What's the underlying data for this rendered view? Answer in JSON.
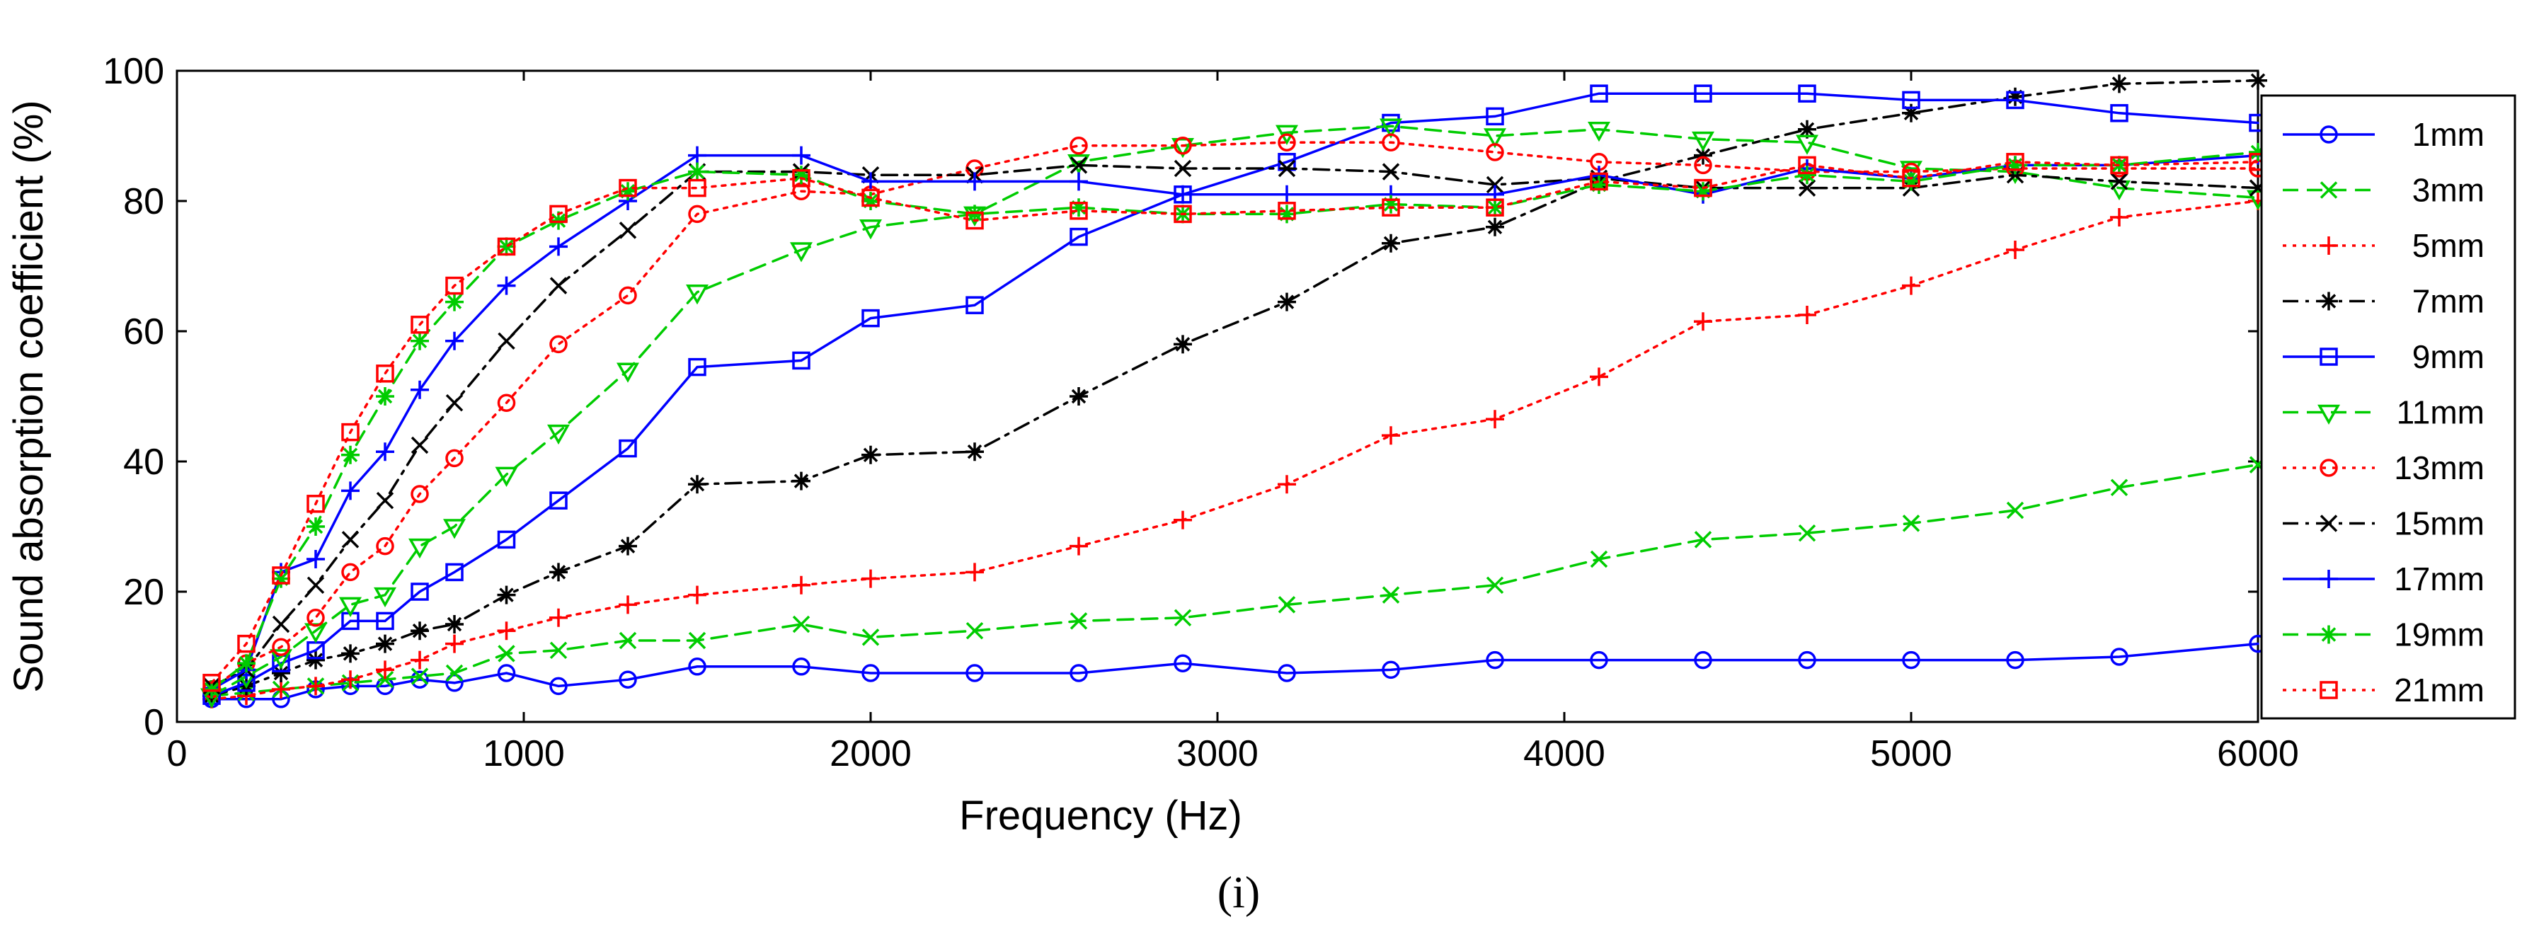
{
  "chart_data": {
    "type": "line",
    "title": "",
    "xlabel": "Frequency (Hz)",
    "ylabel": "Sound absorption coefficient (%)",
    "caption": "(i)",
    "xlim": [
      0,
      6000
    ],
    "ylim": [
      0,
      100
    ],
    "xticks": [
      0,
      1000,
      2000,
      3000,
      4000,
      5000,
      6000
    ],
    "yticks": [
      0,
      20,
      40,
      60,
      80,
      100
    ],
    "grid": false,
    "legend_position": "right",
    "x": [
      100,
      200,
      300,
      400,
      500,
      600,
      700,
      800,
      950,
      1100,
      1300,
      1500,
      1800,
      2000,
      2300,
      2600,
      2900,
      3200,
      3500,
      3800,
      4100,
      4400,
      4700,
      5000,
      5300,
      5600,
      6000
    ],
    "series": [
      {
        "name": "1mm",
        "color": "#0000ff",
        "dash": "solid",
        "marker": "circle",
        "values": [
          3.5,
          3.5,
          3.5,
          5,
          5.5,
          5.5,
          6.5,
          6,
          7.5,
          5.5,
          6.5,
          8.5,
          8.5,
          7.5,
          7.5,
          7.5,
          9,
          7.5,
          8,
          9.5,
          9.5,
          9.5,
          9.5,
          9.5,
          9.5,
          10,
          12
        ]
      },
      {
        "name": "3mm",
        "color": "#00cc00",
        "dash": "dashed",
        "marker": "x",
        "values": [
          4,
          4.5,
          5,
          5.5,
          6,
          6.5,
          7,
          7.5,
          10.5,
          11,
          12.5,
          12.5,
          15,
          13,
          14,
          15.5,
          16,
          18,
          19.5,
          21,
          25,
          28,
          29,
          30.5,
          32.5,
          36,
          39.5
        ]
      },
      {
        "name": "5mm",
        "color": "#ff0000",
        "dash": "dotted",
        "marker": "plus",
        "values": [
          3.5,
          4,
          5,
          5.5,
          6.5,
          8,
          9.5,
          12,
          14,
          16,
          18,
          19.5,
          21,
          22,
          23,
          27,
          31,
          36.5,
          44,
          46.5,
          53,
          61.5,
          62.5,
          67,
          72.5,
          77.5,
          80
        ]
      },
      {
        "name": "7mm",
        "color": "#000000",
        "dash": "dashdot",
        "marker": "star",
        "values": [
          4,
          5.5,
          7.5,
          9.5,
          10.5,
          12,
          14,
          15,
          19.5,
          23,
          27,
          36.5,
          37,
          41,
          41.5,
          50,
          58,
          64.5,
          73.5,
          76,
          83,
          87,
          91,
          93.5,
          96,
          98,
          98.5
        ]
      },
      {
        "name": "9mm",
        "color": "#0000ff",
        "dash": "solid",
        "marker": "square",
        "values": [
          4,
          6,
          9,
          11,
          15.5,
          15.5,
          20,
          23,
          28,
          34,
          42,
          54.5,
          55.5,
          62,
          64,
          74.5,
          81,
          86,
          92,
          93,
          96.5,
          96.5,
          96.5,
          95.5,
          95.5,
          93.5,
          92
        ]
      },
      {
        "name": "11mm",
        "color": "#00cc00",
        "dash": "dashed",
        "marker": "triangle-down",
        "values": [
          4,
          7,
          10,
          14,
          18,
          19.5,
          27,
          30,
          38,
          44.5,
          54,
          66,
          72.5,
          76,
          78,
          86,
          88.5,
          90.5,
          91.5,
          90,
          91,
          89.5,
          89,
          85,
          84.5,
          82,
          80.5
        ]
      },
      {
        "name": "13mm",
        "color": "#ff0000",
        "dash": "dotted",
        "marker": "circle",
        "values": [
          5,
          9,
          11.5,
          16,
          23,
          27,
          35,
          40.5,
          49,
          58,
          65.5,
          78,
          81.5,
          81,
          85,
          88.5,
          88.5,
          89,
          89,
          87.5,
          86,
          85.5,
          84.5,
          84.5,
          85,
          85,
          85
        ]
      },
      {
        "name": "15mm",
        "color": "#000000",
        "dash": "dashdot",
        "marker": "x",
        "values": [
          5.5,
          8,
          15,
          21,
          28,
          34,
          42.5,
          49,
          58.5,
          67,
          75.5,
          84.5,
          84.5,
          84,
          84,
          85.5,
          85,
          85,
          84.5,
          82.5,
          83.5,
          82,
          82,
          82,
          84,
          83,
          82
        ]
      },
      {
        "name": "17mm",
        "color": "#0000ff",
        "dash": "solid",
        "marker": "plus",
        "values": [
          5,
          8,
          23,
          25,
          35.5,
          41.5,
          51,
          58.5,
          67,
          73,
          80,
          87,
          87,
          83,
          83,
          83,
          81,
          81,
          81,
          81,
          84,
          81,
          85,
          83.5,
          85.5,
          85.5,
          87
        ]
      },
      {
        "name": "19mm",
        "color": "#00cc00",
        "dash": "dashed",
        "marker": "star",
        "values": [
          5,
          9,
          22,
          30,
          41,
          50,
          58.5,
          64.5,
          73,
          77,
          81.5,
          84.5,
          84,
          80,
          78,
          79,
          78,
          78,
          79.5,
          79,
          82.5,
          81.5,
          84,
          83,
          85.5,
          85.5,
          87.5
        ]
      },
      {
        "name": "21mm",
        "color": "#ff0000",
        "dash": "dotted",
        "marker": "square",
        "values": [
          6,
          12,
          22.5,
          33.5,
          44.5,
          53.5,
          61,
          67,
          73,
          78,
          82,
          82,
          83.5,
          80.5,
          77,
          78.5,
          78,
          78.5,
          79,
          79,
          83,
          82,
          85.5,
          83.5,
          86,
          85.5,
          86
        ]
      }
    ]
  }
}
